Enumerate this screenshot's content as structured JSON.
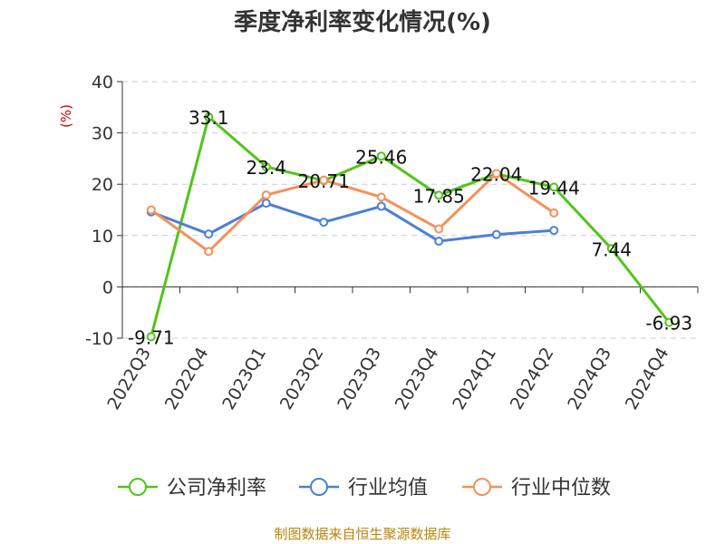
{
  "chart_data": {
    "type": "line",
    "title": "季度净利率变化情况(%)",
    "ylabel": "(%)",
    "categories": [
      "2022Q3",
      "2022Q4",
      "2023Q1",
      "2023Q2",
      "2023Q3",
      "2023Q4",
      "2024Q1",
      "2024Q2",
      "2024Q3",
      "2024Q4"
    ],
    "ylim": [
      -10,
      40
    ],
    "yticks": [
      -10,
      0,
      10,
      20,
      30,
      40
    ],
    "grid": true,
    "legend_position": "bottom",
    "series": [
      {
        "name": "公司净利率",
        "color": "#52c41a",
        "values": [
          -9.71,
          33.1,
          23.4,
          20.71,
          25.46,
          17.85,
          22.04,
          19.44,
          7.44,
          -6.93
        ],
        "labels": [
          "-9.71",
          "33.1",
          "23.4",
          "20.71",
          "25.46",
          "17.85",
          "22.04",
          "19.44",
          "7.44",
          "-6.93"
        ]
      },
      {
        "name": "行业均值",
        "color": "#4a7fd8",
        "values": [
          14.6,
          10.3,
          16.3,
          12.6,
          15.7,
          8.9,
          10.2,
          11.0,
          null,
          null
        ]
      },
      {
        "name": "行业中位数",
        "color": "#f5905a",
        "values": [
          15.0,
          6.9,
          17.9,
          20.8,
          17.5,
          11.3,
          22.1,
          14.4,
          null,
          null
        ]
      }
    ]
  },
  "source": "制图数据来自恒生聚源数据库"
}
